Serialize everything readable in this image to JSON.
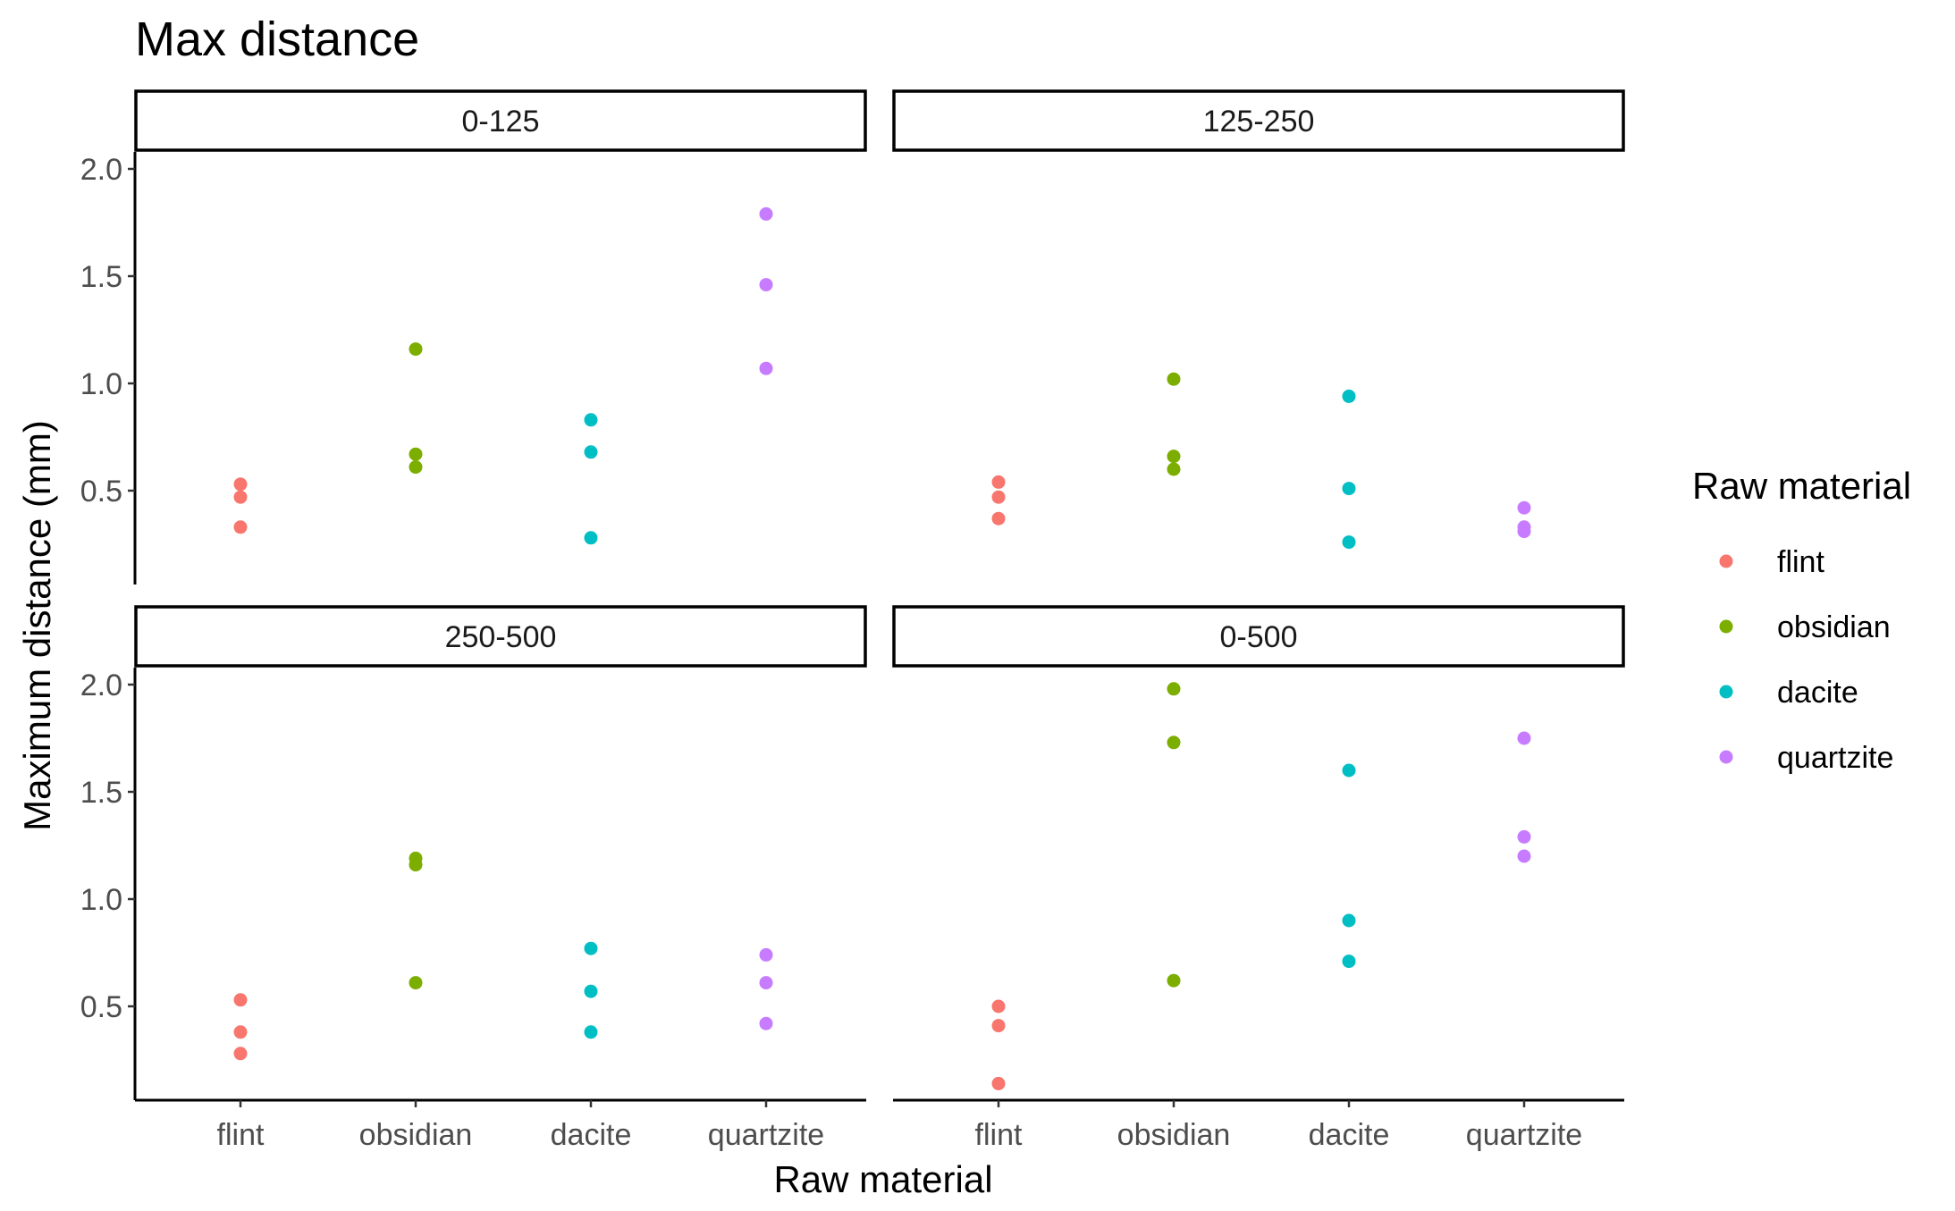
{
  "chart_data": {
    "type": "scatter",
    "title": "Max distance",
    "xlabel": "Raw material",
    "ylabel": "Maximum distance (mm)",
    "categories": [
      "flint",
      "obsidian",
      "dacite",
      "quartzite"
    ],
    "y_ticks": [
      "0.5",
      "1.0",
      "1.5",
      "2.0"
    ],
    "ylim": [
      0.05,
      2.05
    ],
    "grid": false,
    "legend": {
      "title": "Raw material",
      "position": "right",
      "entries": [
        "flint",
        "obsidian",
        "dacite",
        "quartzite"
      ]
    },
    "colors": {
      "flint": "#F8766D",
      "obsidian": "#7CAE00",
      "dacite": "#00BFC4",
      "quartzite": "#C77CFF"
    },
    "panels": [
      {
        "label": "0-125",
        "series": [
          {
            "name": "flint",
            "values": [
              0.53,
              0.47,
              0.33
            ]
          },
          {
            "name": "obsidian",
            "values": [
              1.16,
              0.67,
              0.61
            ]
          },
          {
            "name": "dacite",
            "values": [
              0.83,
              0.68,
              0.28
            ]
          },
          {
            "name": "quartzite",
            "values": [
              1.79,
              1.46,
              1.07
            ]
          }
        ]
      },
      {
        "label": "125-250",
        "series": [
          {
            "name": "flint",
            "values": [
              0.54,
              0.47,
              0.37
            ]
          },
          {
            "name": "obsidian",
            "values": [
              1.02,
              0.66,
              0.6
            ]
          },
          {
            "name": "dacite",
            "values": [
              0.94,
              0.51,
              0.26
            ]
          },
          {
            "name": "quartzite",
            "values": [
              0.42,
              0.33,
              0.31
            ]
          }
        ]
      },
      {
        "label": "250-500",
        "series": [
          {
            "name": "flint",
            "values": [
              0.53,
              0.38,
              0.28
            ]
          },
          {
            "name": "obsidian",
            "values": [
              1.19,
              1.16,
              0.61
            ]
          },
          {
            "name": "dacite",
            "values": [
              0.77,
              0.57,
              0.38
            ]
          },
          {
            "name": "quartzite",
            "values": [
              0.74,
              0.61,
              0.42
            ]
          }
        ]
      },
      {
        "label": "0-500",
        "series": [
          {
            "name": "flint",
            "values": [
              0.5,
              0.41,
              0.14
            ]
          },
          {
            "name": "obsidian",
            "values": [
              1.98,
              1.73,
              0.62
            ]
          },
          {
            "name": "dacite",
            "values": [
              1.6,
              0.9,
              0.71
            ]
          },
          {
            "name": "quartzite",
            "values": [
              1.75,
              1.29,
              1.2
            ]
          }
        ]
      }
    ]
  }
}
